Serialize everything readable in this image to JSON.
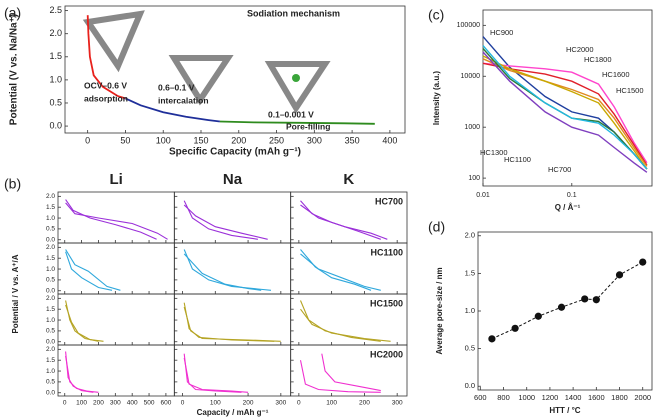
{
  "chart_data": [
    {
      "type": "line",
      "panel": "(a)",
      "xlabel": "Specific Capacity (mAh g⁻¹)",
      "ylabel": "Potential (V vs. Na/Na⁺)",
      "xlim": [
        -30,
        420
      ],
      "xticks": [
        0,
        50,
        100,
        150,
        200,
        250,
        300,
        350,
        400
      ],
      "ylim": [
        -0.15,
        2.6
      ],
      "yticks": [
        {
          "value": 0,
          "label": "0.0"
        },
        0.5,
        {
          "value": 1,
          "label": "1.0"
        },
        1.5,
        {
          "value": 2,
          "label": "2.0"
        },
        2.5
      ],
      "series": [
        {
          "color": "#e8211c",
          "x": [
            0,
            1,
            3,
            8,
            20,
            40,
            50
          ],
          "values": [
            2.4,
            2.0,
            1.5,
            1.1,
            0.85,
            0.65,
            0.6
          ]
        },
        {
          "color": "#1f2f9a",
          "x": [
            50,
            70,
            100,
            130,
            160,
            175
          ],
          "values": [
            0.6,
            0.45,
            0.3,
            0.2,
            0.13,
            0.1
          ]
        },
        {
          "color": "#2e8b1e",
          "x": [
            175,
            220,
            280,
            340,
            380
          ],
          "values": [
            0.1,
            0.08,
            0.07,
            0.06,
            0.05
          ]
        }
      ],
      "annotations": [
        {
          "text": "Sodiation mechanism",
          "color": "#111111"
        },
        {
          "text": "OCV–0.6 V",
          "color": "#e8211c"
        },
        {
          "text": "adsorption",
          "color": "#e8211c"
        },
        {
          "text": "0.6–0.1 V",
          "color": "#1f2f9a"
        },
        {
          "text": "intercalation",
          "color": "#1f2f9a"
        },
        {
          "text": "0.1–0.001 V",
          "color": "#2e8b1e"
        },
        {
          "text": "Pore-filling",
          "color": "#2e8b1e"
        }
      ]
    },
    {
      "type": "line-grid",
      "panel": "(b)",
      "xlabel": "Capacity / mAh g⁻¹",
      "ylabel": "Potential / V vs. A⁺/A",
      "ylim": [
        -0.15,
        2.2
      ],
      "yticks": [
        {
          "value": 0,
          "label": "0.0"
        },
        0.5,
        {
          "value": 1,
          "label": "1.0"
        },
        1.5,
        {
          "value": 2,
          "label": "2.0"
        }
      ],
      "columns": [
        {
          "name": "Li",
          "color": "#e87722",
          "xlim": [
            -40,
            650
          ],
          "xticks": [
            0,
            100,
            200,
            300,
            400,
            500,
            600
          ]
        },
        {
          "name": "Na",
          "color": "#2e8b00",
          "xlim": [
            -25,
            330
          ],
          "xticks": [
            0,
            100,
            200,
            300
          ]
        },
        {
          "name": "K",
          "color": "#7030a0",
          "xlim": [
            -25,
            330
          ],
          "xticks": [
            0,
            100,
            200,
            300
          ]
        }
      ],
      "rows": [
        {
          "name": "HC700",
          "color": "#9b30d9"
        },
        {
          "name": "HC1100",
          "color": "#2fa8dc"
        },
        {
          "name": "HC1500",
          "color": "#b5a424"
        },
        {
          "name": "HC2000",
          "color": "#f030d0"
        }
      ],
      "panels": [
        [
          [
            {
              "x": [
                5,
                50,
                150,
                300,
                450,
                545
              ],
              "values": [
                1.85,
                1.35,
                1.0,
                0.7,
                0.35,
                0.02
              ]
            },
            {
              "x": [
                5,
                60,
                200,
                400,
                550,
                610
              ],
              "values": [
                1.7,
                1.2,
                1.0,
                0.75,
                0.3,
                0.02
              ]
            }
          ],
          [
            {
              "x": [
                5,
                30,
                80,
                150,
                230
              ],
              "values": [
                1.8,
                1.0,
                0.5,
                0.2,
                0.02
              ]
            },
            {
              "x": [
                5,
                40,
                100,
                180,
                260
              ],
              "values": [
                1.6,
                1.1,
                0.6,
                0.3,
                0.02
              ]
            }
          ],
          [
            {
              "x": [
                5,
                40,
                100,
                180,
                250
              ],
              "values": [
                1.8,
                1.2,
                0.8,
                0.4,
                0.02
              ]
            },
            {
              "x": [
                5,
                60,
                140,
                220,
                270
              ],
              "values": [
                1.6,
                1.0,
                0.6,
                0.3,
                0.02
              ]
            }
          ]
        ],
        [
          [
            {
              "x": [
                5,
                40,
                100,
                200,
                280
              ],
              "values": [
                1.8,
                1.0,
                0.6,
                0.15,
                0.02
              ]
            },
            {
              "x": [
                5,
                60,
                140,
                250,
                330
              ],
              "values": [
                1.9,
                1.2,
                0.9,
                0.2,
                0.02
              ]
            }
          ],
          [
            {
              "x": [
                5,
                30,
                80,
                150,
                230,
                270
              ],
              "values": [
                1.9,
                1.0,
                0.5,
                0.2,
                0.08,
                0.02
              ]
            },
            {
              "x": [
                5,
                60,
                130,
                200,
                240
              ],
              "values": [
                1.7,
                0.8,
                0.3,
                0.1,
                0.02
              ]
            }
          ],
          [
            {
              "x": [
                5,
                50,
                100,
                170,
                220
              ],
              "values": [
                1.9,
                1.1,
                0.6,
                0.3,
                0.02
              ]
            },
            {
              "x": [
                5,
                60,
                130,
                200,
                250
              ],
              "values": [
                1.7,
                1.0,
                0.6,
                0.2,
                0.02
              ]
            }
          ]
        ],
        [
          [
            {
              "x": [
                5,
                30,
                60,
                120,
                200
              ],
              "values": [
                1.9,
                1.0,
                0.5,
                0.15,
                0.02
              ]
            },
            {
              "x": [
                5,
                40,
                80,
                150,
                230
              ],
              "values": [
                1.7,
                0.9,
                0.4,
                0.1,
                0.02
              ]
            }
          ],
          [
            {
              "x": [
                5,
                20,
                50,
                150,
                280
              ],
              "values": [
                1.8,
                0.6,
                0.2,
                0.08,
                0.02
              ]
            },
            {
              "x": [
                5,
                25,
                60,
                200,
                300
              ],
              "values": [
                1.6,
                0.5,
                0.15,
                0.08,
                0.02
              ]
            }
          ],
          [
            {
              "x": [
                5,
                30,
                80,
                160,
                250
              ],
              "values": [
                1.9,
                1.0,
                0.5,
                0.2,
                0.02
              ]
            },
            {
              "x": [
                5,
                40,
                100,
                200,
                280
              ],
              "values": [
                1.5,
                0.8,
                0.4,
                0.15,
                0.02
              ]
            }
          ]
        ],
        [
          [
            {
              "x": [
                5,
                20,
                50,
                100,
                170
              ],
              "values": [
                1.9,
                0.7,
                0.3,
                0.1,
                0.02
              ]
            },
            {
              "x": [
                5,
                30,
                70,
                130,
                200
              ],
              "values": [
                1.7,
                0.5,
                0.2,
                0.08,
                0.02
              ]
            }
          ],
          [
            {
              "x": [
                5,
                15,
                40,
                100,
                180
              ],
              "values": [
                1.8,
                0.5,
                0.15,
                0.08,
                0.02
              ]
            },
            {
              "x": [
                5,
                20,
                60,
                150,
                200
              ],
              "values": [
                1.6,
                0.4,
                0.15,
                0.08,
                0.02
              ]
            }
          ],
          [
            {
              "x": [
                70,
                80,
                110,
                180,
                250
              ],
              "values": [
                1.8,
                1.0,
                0.5,
                0.3,
                0.1
              ]
            },
            {
              "x": [
                5,
                20,
                60,
                150,
                250
              ],
              "values": [
                1.5,
                0.4,
                0.15,
                0.05,
                0.02
              ]
            }
          ]
        ]
      ]
    },
    {
      "type": "line",
      "panel": "(c)",
      "xlabel": "Q / Å⁻¹",
      "ylabel": "Intensity (a.u.)",
      "log_x": true,
      "log_y": true,
      "xlim": [
        0.01,
        0.8
      ],
      "xticks": [
        0.01,
        0.1
      ],
      "ylim": [
        70,
        200000
      ],
      "yticks": [
        100,
        1000,
        10000,
        100000
      ],
      "x": [
        0.01,
        0.02,
        0.05,
        0.1,
        0.2,
        0.3,
        0.5,
        0.7
      ],
      "series": [
        {
          "name": "HC900",
          "color": "#1f3f9f",
          "values": [
            60000,
            15000,
            4000,
            2000,
            1500,
            800,
            300,
            150
          ]
        },
        {
          "name": "HC2000",
          "color": "#ff44cc",
          "values": [
            18000,
            16000,
            14000,
            12000,
            7000,
            2500,
            500,
            200
          ]
        },
        {
          "name": "HC1800",
          "color": "#e0202a",
          "values": [
            18000,
            14000,
            11000,
            8000,
            4500,
            1800,
            450,
            180
          ]
        },
        {
          "name": "HC1600",
          "color": "#e08a20",
          "values": [
            22000,
            13000,
            8000,
            5500,
            3500,
            1500,
            400,
            170
          ]
        },
        {
          "name": "HC1500",
          "color": "#c8a800",
          "values": [
            25000,
            14000,
            8000,
            5000,
            3000,
            1200,
            350,
            150
          ]
        },
        {
          "name": "HC1300",
          "color": "#2b7a3b",
          "values": [
            35000,
            9000,
            3000,
            1500,
            1300,
            800,
            300,
            150
          ]
        },
        {
          "name": "HC1100",
          "color": "#22b8e0",
          "values": [
            40000,
            10000,
            3000,
            1500,
            1200,
            700,
            300,
            150
          ]
        },
        {
          "name": "HC700",
          "color": "#7f3fbf",
          "values": [
            30000,
            8000,
            2000,
            1000,
            700,
            400,
            200,
            130
          ]
        }
      ]
    },
    {
      "type": "scatter",
      "panel": "(d)",
      "xlabel": "HTT / °C",
      "ylabel": "Average pore-size / nm",
      "color": "#111111",
      "xlim": [
        580,
        2080
      ],
      "xticks": [
        600,
        800,
        1000,
        1200,
        1400,
        1600,
        1800,
        2000
      ],
      "ylim": [
        -0.05,
        2.05
      ],
      "yticks": [
        {
          "value": 0,
          "label": "0.0"
        },
        0.5,
        {
          "value": 1,
          "label": "1.0"
        },
        1.5,
        {
          "value": 2,
          "label": "2.0"
        }
      ],
      "x": [
        700,
        900,
        1100,
        1300,
        1500,
        1600,
        1800,
        2000
      ],
      "values": [
        0.63,
        0.77,
        0.93,
        1.05,
        1.16,
        1.15,
        1.48,
        1.65
      ]
    }
  ]
}
